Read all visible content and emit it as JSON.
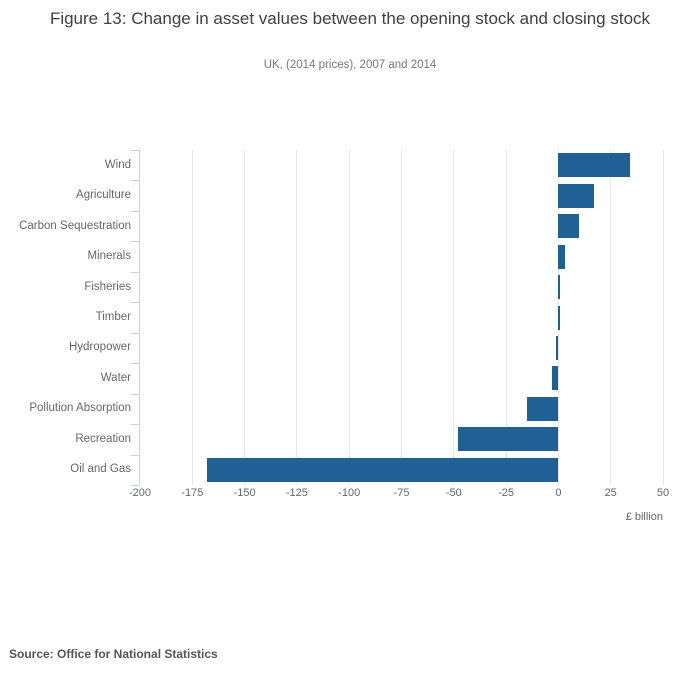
{
  "header": {
    "title": "Figure 13: Change in asset values between the opening stock and closing stock",
    "subtitle": "UK, (2014 prices), 2007 and 2014"
  },
  "chart_data": {
    "type": "bar",
    "orientation": "horizontal",
    "title": "Figure 13: Change in asset values between the opening stock and closing stock",
    "subtitle": "UK, (2014 prices), 2007 and 2014",
    "categories": [
      "Wind",
      "Agriculture",
      "Carbon Sequestration",
      "Minerals",
      "Fisheries",
      "Timber",
      "Hydropower",
      "Water",
      "Pollution Absorption",
      "Recreation",
      "Oil and Gas"
    ],
    "values": [
      34,
      17,
      10,
      3,
      1,
      1,
      -1,
      -3,
      -15,
      -48,
      -168
    ],
    "xlabel": "£ billion",
    "ylabel": "",
    "xlim": [
      -200,
      50
    ],
    "xticks": [
      -200,
      -175,
      -150,
      -125,
      -100,
      -75,
      -50,
      -25,
      0,
      25,
      50
    ],
    "xtick_labels": [
      "-200",
      "-175",
      "-150",
      "-125",
      "-100",
      "-75",
      "-50",
      "-25",
      "0",
      "25",
      "50"
    ],
    "grid": "on",
    "legend": "none",
    "bar_color": "#206095"
  },
  "footer": {
    "source": "Source: Office for National Statistics"
  }
}
